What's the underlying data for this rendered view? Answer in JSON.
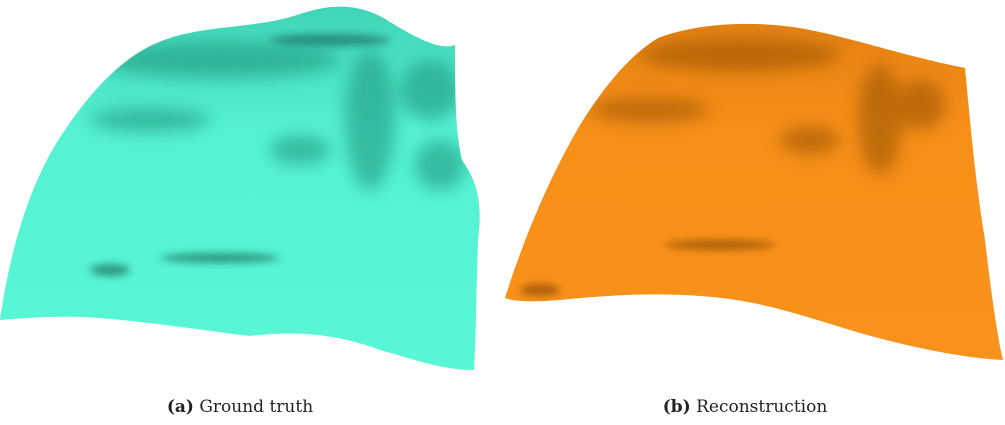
{
  "figures": [
    {
      "label": "(a)",
      "caption": "Ground truth"
    },
    {
      "label": "(b)",
      "caption": "Reconstruction"
    }
  ]
}
